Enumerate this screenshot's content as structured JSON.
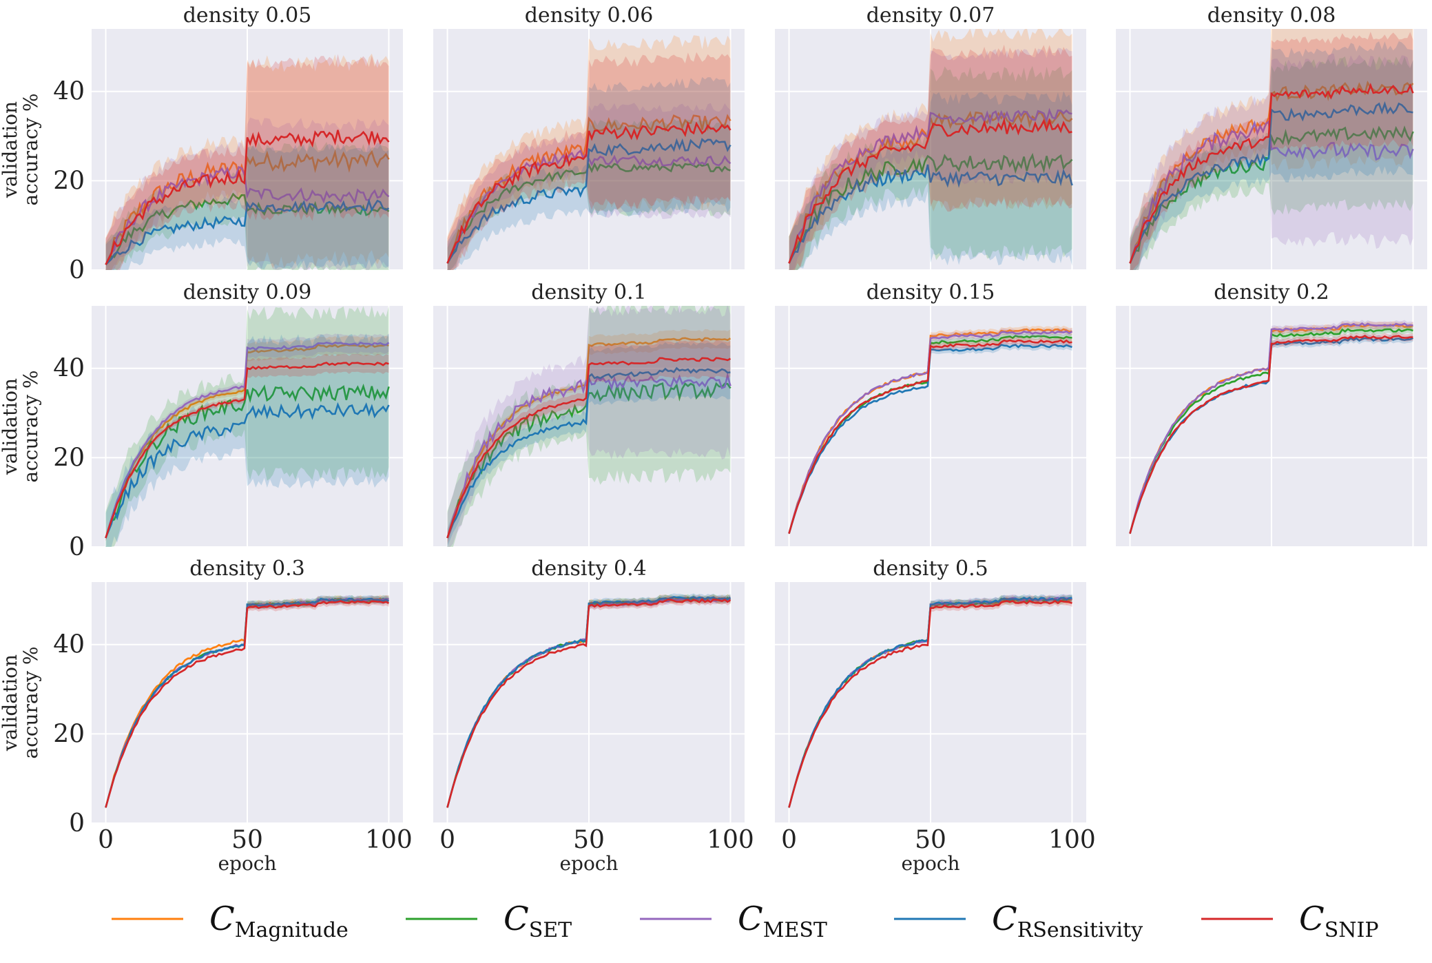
{
  "chart_data": {
    "type": "line",
    "x_label": "epoch",
    "y_label_lines": [
      "validation",
      "accuracy %"
    ],
    "x_ticks": [
      0,
      50,
      100
    ],
    "y_ticks": [
      0,
      20,
      40
    ],
    "xlim": [
      -5,
      105
    ],
    "ylim": [
      0,
      54
    ],
    "series": [
      {
        "key": "mag",
        "name": "C",
        "sub": "Magnitude",
        "color": "#ff7f0e"
      },
      {
        "key": "set",
        "name": "C",
        "sub": "SET",
        "color": "#2ca02c"
      },
      {
        "key": "mest",
        "name": "C",
        "sub": "MEST",
        "color": "#9467bd"
      },
      {
        "key": "rsens",
        "name": "C",
        "sub": "RSensitivity",
        "color": "#1f77b4"
      },
      {
        "key": "snip",
        "name": "C",
        "sub": "SNIP",
        "color": "#d62728"
      }
    ],
    "panels": [
      {
        "title": "density 0.05",
        "start": 1.2,
        "final": {
          "mag": 24.5,
          "set": 13.5,
          "mest": 16.5,
          "rsens": 14.5,
          "snip": 30.0
        },
        "mid": {
          "mag": 23,
          "set": 16,
          "mest": 22,
          "rsens": 11,
          "snip": 21
        },
        "band": {
          "mag": 22,
          "set": 14,
          "mest": 16,
          "rsens": 13,
          "snip": 17
        }
      },
      {
        "title": "density 0.06",
        "start": 1.5,
        "final": {
          "mag": 33.0,
          "set": 23.0,
          "mest": 24.5,
          "rsens": 28.0,
          "snip": 31.5
        },
        "mid": {
          "mag": 27,
          "set": 22,
          "mest": 26,
          "rsens": 18,
          "snip": 25
        },
        "band": {
          "mag": 18,
          "set": 10,
          "mest": 12,
          "rsens": 14,
          "snip": 16
        }
      },
      {
        "title": "density 0.07",
        "start": 1.5,
        "final": {
          "mag": 34.0,
          "set": 24.0,
          "mest": 34.5,
          "rsens": 20.5,
          "snip": 32.0
        },
        "mid": {
          "mag": 30,
          "set": 24,
          "mest": 31,
          "rsens": 22,
          "snip": 28
        },
        "band": {
          "mag": 19,
          "set": 20,
          "mest": 14,
          "rsens": 18,
          "snip": 17
        }
      },
      {
        "title": "density 0.08",
        "start": 1.5,
        "final": {
          "mag": 40.5,
          "set": 30.5,
          "mest": 26.5,
          "rsens": 36.0,
          "snip": 40.5
        },
        "mid": {
          "mag": 33,
          "set": 24,
          "mest": 32,
          "rsens": 25,
          "snip": 29
        },
        "band": {
          "mag": 16,
          "set": 16,
          "mest": 20,
          "rsens": 14,
          "snip": 12
        }
      },
      {
        "title": "density 0.09",
        "start": 2.0,
        "final": {
          "mag": 45.0,
          "set": 34.5,
          "mest": 45.5,
          "rsens": 30.5,
          "snip": 41.0
        },
        "mid": {
          "mag": 35,
          "set": 32,
          "mest": 36,
          "rsens": 27,
          "snip": 33
        },
        "band": {
          "mag": 2,
          "set": 18,
          "mest": 2,
          "rsens": 16,
          "snip": 2
        }
      },
      {
        "title": "density 0.1",
        "start": 2.0,
        "final": {
          "mag": 46.5,
          "set": 35.0,
          "mest": 37.0,
          "rsens": 39.5,
          "snip": 42.0
        },
        "mid": {
          "mag": 36,
          "set": 31,
          "mest": 36,
          "rsens": 28,
          "snip": 33
        },
        "band": {
          "mag": 2,
          "set": 19,
          "mest": 16,
          "rsens": 6,
          "snip": 4
        }
      },
      {
        "title": "density 0.15",
        "start": 3.0,
        "final": {
          "mag": 48.5,
          "set": 47.0,
          "mest": 48.0,
          "rsens": 45.0,
          "snip": 46.0
        },
        "mid": {
          "mag": 39,
          "set": 37,
          "mest": 39,
          "rsens": 36,
          "snip": 37
        },
        "band": {
          "mag": 0.8,
          "set": 0.8,
          "mest": 0.8,
          "rsens": 0.8,
          "snip": 0.8
        }
      },
      {
        "title": "density 0.2",
        "start": 3.0,
        "final": {
          "mag": 49.5,
          "set": 48.5,
          "mest": 49.8,
          "rsens": 46.5,
          "snip": 47.0
        },
        "mid": {
          "mag": 40,
          "set": 39,
          "mest": 40,
          "rsens": 37,
          "snip": 37
        },
        "band": {
          "mag": 0.8,
          "set": 0.8,
          "mest": 0.8,
          "rsens": 0.8,
          "snip": 0.8
        }
      },
      {
        "title": "density 0.3",
        "start": 3.5,
        "final": {
          "mag": 50.0,
          "set": 50.0,
          "mest": 50.0,
          "rsens": 50.0,
          "snip": 49.5
        },
        "mid": {
          "mag": 41,
          "set": 40,
          "mest": 40,
          "rsens": 40,
          "snip": 39
        },
        "band": {
          "mag": 0.8,
          "set": 0.8,
          "mest": 0.8,
          "rsens": 0.8,
          "snip": 0.8
        }
      },
      {
        "title": "density 0.4",
        "start": 3.5,
        "final": {
          "mag": 50.2,
          "set": 50.2,
          "mest": 50.0,
          "rsens": 50.4,
          "snip": 49.8
        },
        "mid": {
          "mag": 41,
          "set": 41,
          "mest": 41,
          "rsens": 41,
          "snip": 40
        },
        "band": {
          "mag": 0.8,
          "set": 0.8,
          "mest": 0.8,
          "rsens": 0.8,
          "snip": 0.8
        }
      },
      {
        "title": "density 0.5",
        "start": 3.5,
        "final": {
          "mag": 50.0,
          "set": 50.0,
          "mest": 50.2,
          "rsens": 50.2,
          "snip": 49.5
        },
        "mid": {
          "mag": 41,
          "set": 41,
          "mest": 41,
          "rsens": 41,
          "snip": 40
        },
        "band": {
          "mag": 0.8,
          "set": 0.8,
          "mest": 0.8,
          "rsens": 0.8,
          "snip": 0.8
        }
      }
    ]
  }
}
